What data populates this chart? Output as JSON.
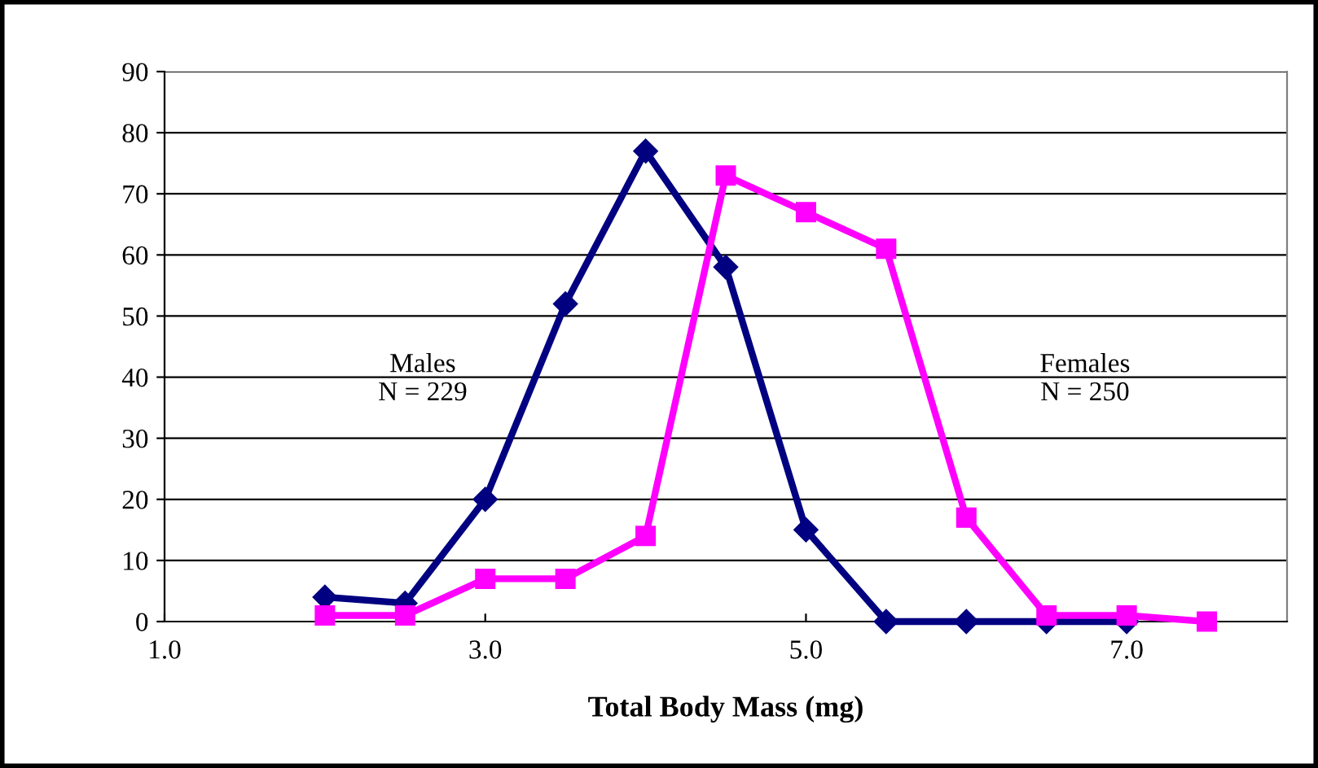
{
  "chart_data": {
    "type": "line",
    "xlabel": "Total Body Mass (mg)",
    "x": [
      2.0,
      2.5,
      3.0,
      3.5,
      4.0,
      4.5,
      5.0,
      5.5,
      6.0,
      6.5,
      7.0,
      7.5
    ],
    "series": [
      {
        "color": "#000080",
        "marker": "diamond",
        "x": [
          2.0,
          2.5,
          3.0,
          3.5,
          4.0,
          4.5,
          5.0,
          5.5,
          6.0,
          6.5,
          7.0
        ],
        "values": [
          4,
          3,
          20,
          52,
          77,
          58,
          15,
          0,
          0,
          0,
          0
        ]
      },
      {
        "color": "#ff00ff",
        "marker": "square",
        "values": [
          1,
          1,
          7,
          7,
          14,
          73,
          67,
          61,
          17,
          1,
          1,
          0
        ]
      }
    ],
    "annotations": [
      "Males\nN = 229",
      "Females\nN = 250"
    ],
    "xlim": [
      1.0,
      8.0
    ],
    "xticks": [
      {
        "value": 1,
        "label": "1.0"
      },
      {
        "value": 3,
        "label": "3.0"
      },
      {
        "value": 5,
        "label": "5.0"
      },
      {
        "value": 7,
        "label": "7.0"
      }
    ],
    "ylim": [
      0,
      90
    ],
    "yticks": [
      0,
      10,
      20,
      30,
      40,
      50,
      60,
      70,
      80,
      90
    ],
    "grid": "y",
    "legend": false,
    "line_style": "solid"
  }
}
